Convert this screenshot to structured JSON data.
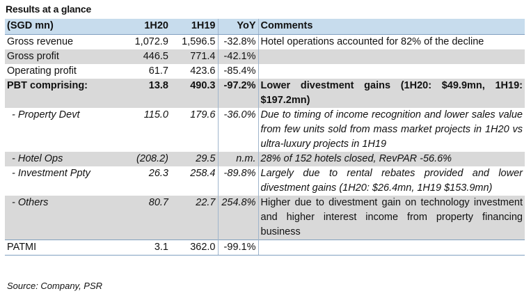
{
  "title": "Results at a glance",
  "header": {
    "label": "(SGD mn)",
    "h20": "1H20",
    "h19": "1H19",
    "yoy": "YoY",
    "comments": "Comments"
  },
  "rows": [
    {
      "label": "Gross revenue",
      "h20": "1,072.9",
      "h19": "1,596.5",
      "yoy": "-32.8%",
      "comment": "Hotel operations accounted for 82% of the decline"
    },
    {
      "label": "Gross profit",
      "h20": "446.5",
      "h19": "771.4",
      "yoy": "-42.1%",
      "comment": ""
    },
    {
      "label": "Operating profit",
      "h20": "61.7",
      "h19": "423.6",
      "yoy": "-85.4%",
      "comment": ""
    },
    {
      "label": "PBT comprising:",
      "h20": "13.8",
      "h19": "490.3",
      "yoy": "-97.2%",
      "comment": "Lower divestment gains (1H20: $49.9mn, 1H19: $197.2mn)"
    },
    {
      "label": "- Property Devt",
      "h20": "115.0",
      "h19": "179.6",
      "yoy": "-36.0%",
      "comment": "Due to timing of income recognition and lower sales value from few units sold from mass market projects in 1H20 vs ultra-luxury projects in 1H19"
    },
    {
      "label": "- Hotel Ops",
      "h20": "(208.2)",
      "h19": "29.5",
      "yoy": "n.m.",
      "comment": "28% of 152 hotels closed, RevPAR -56.6%"
    },
    {
      "label": "- Investment Ppty",
      "h20": "26.3",
      "h19": "258.4",
      "yoy": "-89.8%",
      "comment": "Largely due to rental rebates provided and lower divestment gains (1H20: $26.4mn, 1H19 $153.9mn)"
    },
    {
      "label": "- Others",
      "h20": "80.7",
      "h19": "22.7",
      "yoy": "254.8%",
      "comment": "Higher due to divestment gain on technology investment and higher interest income from property financing business"
    },
    {
      "label": "PATMI",
      "h20": "3.1",
      "h19": "362.0",
      "yoy": "-99.1%",
      "comment": ""
    }
  ],
  "source": "Source: Company, PSR"
}
